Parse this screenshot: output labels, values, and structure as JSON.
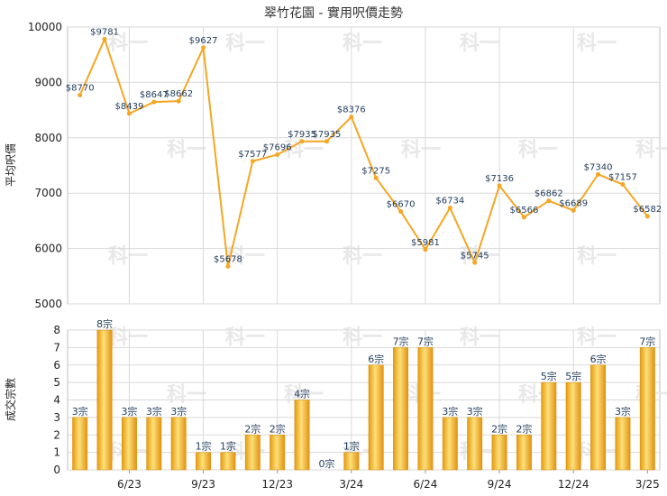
{
  "chart_data": [
    {
      "type": "line",
      "title": "翠竹花園 - 實用呎價走勢",
      "ylabel": "平均呎價",
      "ylim": [
        5000,
        10000
      ],
      "yticks": [
        5000,
        6000,
        7000,
        8000,
        9000,
        10000
      ],
      "color": "#f5a623",
      "grid": true,
      "values": [
        8770,
        9781,
        8439,
        8647,
        8662,
        9627,
        5678,
        7577,
        7696,
        7935,
        7935,
        8376,
        7275,
        6670,
        5981,
        6734,
        5745,
        7136,
        6566,
        6862,
        6689,
        7340,
        7157,
        6582
      ],
      "labels": [
        "$8770",
        "$9781",
        "$8439",
        "$8647",
        "$8662",
        "$9627",
        "$5678",
        "$7577",
        "$7696",
        "$7935",
        "$7935",
        "$8376",
        "$7275",
        "$6670",
        "$5981",
        "$6734",
        "$5745",
        "$7136",
        "$6566",
        "$6862",
        "$6689",
        "$7340",
        "$7157",
        "$6582"
      ]
    },
    {
      "type": "bar",
      "ylabel": "成交宗數",
      "ylim": [
        0,
        8
      ],
      "yticks": [
        0,
        1,
        2,
        3,
        4,
        5,
        6,
        7,
        8
      ],
      "color": "#f5b021",
      "grid": true,
      "values": [
        3,
        8,
        3,
        3,
        3,
        1,
        1,
        2,
        2,
        4,
        0,
        1,
        6,
        7,
        7,
        3,
        3,
        2,
        2,
        5,
        5,
        6,
        3,
        7
      ],
      "labels": [
        "3宗",
        "8宗",
        "3宗",
        "3宗",
        "3宗",
        "1宗",
        "1宗",
        "2宗",
        "2宗",
        "4宗",
        "0宗",
        "1宗",
        "6宗",
        "7宗",
        "7宗",
        "3宗",
        "3宗",
        "2宗",
        "2宗",
        "5宗",
        "5宗",
        "6宗",
        "3宗",
        "7宗"
      ],
      "x_tick_labels": [
        "6/23",
        "9/23",
        "12/23",
        "3/24",
        "6/24",
        "9/24",
        "12/24",
        "3/25"
      ]
    }
  ],
  "watermark": "科一"
}
